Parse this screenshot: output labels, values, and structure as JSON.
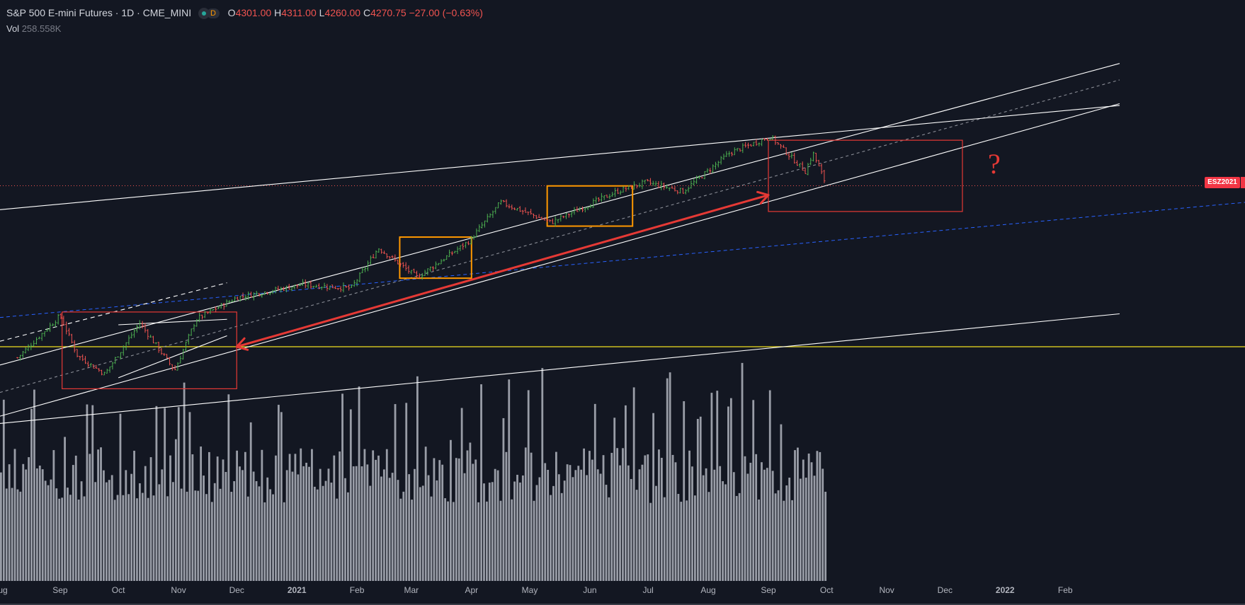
{
  "header": {
    "symbol": "S&P 500 E-mini Futures · 1D · CME_MINI",
    "badge": "D",
    "open_label": "O",
    "open": "4301.00",
    "high_label": "H",
    "high": "4311.00",
    "low_label": "L",
    "low": "4260.00",
    "close_label": "C",
    "close": "4270.75",
    "change": "−27.00 (−0.63%)"
  },
  "volume": {
    "label": "Vol",
    "value": "258.558K"
  },
  "price_tag": "ESZ2021",
  "annotation": "?",
  "colors": {
    "background": "#131722",
    "up": "#26a69a",
    "up_candle": "#4caf50",
    "down": "#ef5350",
    "volume_bar": "#b2b5be",
    "trendline": "#ffffff",
    "channel_box": "#ff9800",
    "zone_box": "#e53935",
    "horizontal_line": "#f0e020",
    "dashed_blue": "#2962ff",
    "arrow": "#e53935"
  },
  "chart_data": {
    "type": "candlestick",
    "x_axis": {
      "tick_labels": [
        "Aug",
        "Sep",
        "Oct",
        "Nov",
        "Dec",
        "2021",
        "Feb",
        "Mar",
        "Apr",
        "May",
        "Jun",
        "Jul",
        "Aug",
        "Sep",
        "Oct",
        "Nov",
        "Dec",
        "2022",
        "Feb"
      ]
    },
    "price_path": [
      {
        "date": "2020-08-10",
        "close": 3330
      },
      {
        "date": "2020-09-01",
        "close": 3560
      },
      {
        "date": "2020-09-10",
        "close": 3340
      },
      {
        "date": "2020-09-24",
        "close": 3240
      },
      {
        "date": "2020-10-12",
        "close": 3520
      },
      {
        "date": "2020-10-30",
        "close": 3260
      },
      {
        "date": "2020-11-10",
        "close": 3540
      },
      {
        "date": "2020-12-01",
        "close": 3660
      },
      {
        "date": "2021-01-04",
        "close": 3730
      },
      {
        "date": "2021-01-29",
        "close": 3710
      },
      {
        "date": "2021-02-12",
        "close": 3930
      },
      {
        "date": "2021-03-04",
        "close": 3770
      },
      {
        "date": "2021-03-31",
        "close": 3970
      },
      {
        "date": "2021-04-16",
        "close": 4180
      },
      {
        "date": "2021-05-12",
        "close": 4070
      },
      {
        "date": "2021-06-15",
        "close": 4240
      },
      {
        "date": "2021-06-30",
        "close": 4290
      },
      {
        "date": "2021-07-19",
        "close": 4240
      },
      {
        "date": "2021-08-12",
        "close": 4450
      },
      {
        "date": "2021-09-02",
        "close": 4540
      },
      {
        "date": "2021-09-20",
        "close": 4350
      },
      {
        "date": "2021-09-24",
        "close": 4450
      },
      {
        "date": "2021-10-01",
        "close": 4270.75
      }
    ],
    "volume": {
      "unit": "contracts",
      "last": "258.558K"
    },
    "drawings": {
      "orange_boxes": [
        {
          "from": "2021-02-23",
          "to": "2021-04-01",
          "high": 3990,
          "low": 3765
        },
        {
          "from": "2021-05-10",
          "to": "2021-06-23",
          "high": 4270,
          "low": 4050
        }
      ],
      "red_boxes": [
        {
          "from": "2020-09-02",
          "to": "2020-12-01",
          "high": 3580,
          "low": 3160
        },
        {
          "from": "2021-09-01",
          "to": "2021-12-10",
          "high": 4520,
          "low": 4130
        }
      ],
      "arrow": {
        "from": {
          "date": "2021-09-01",
          "price": 4220
        },
        "to": {
          "date": "2020-12-01",
          "price": 3390
        }
      },
      "horizontal_line": 3390
    }
  }
}
